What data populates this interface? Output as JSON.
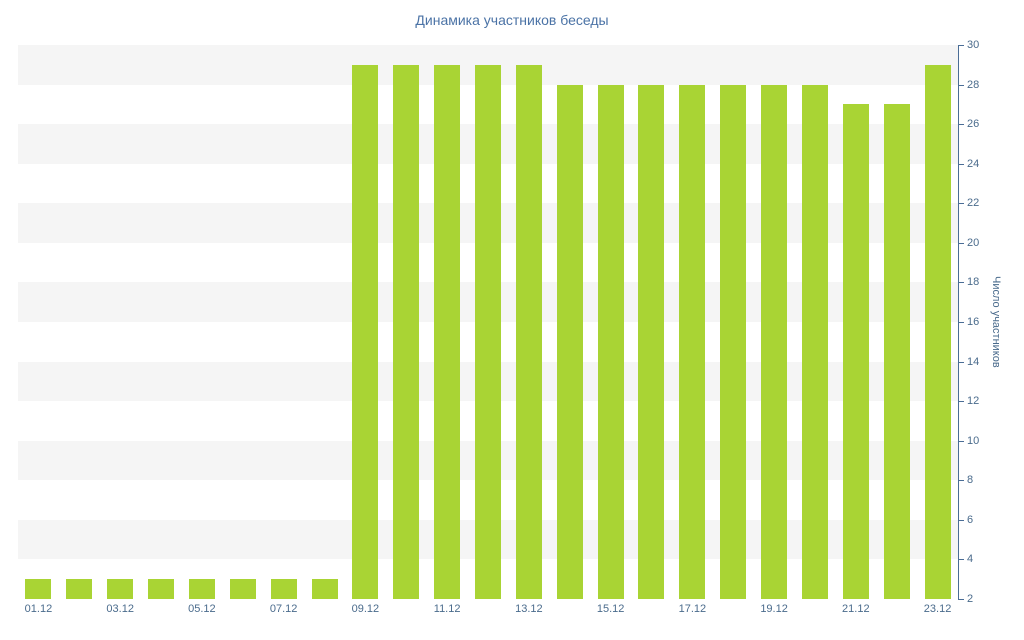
{
  "chart_data": {
    "type": "bar",
    "title": "Динамика участников беседы",
    "ylabel": "Число участников",
    "xlabel": "",
    "categories": [
      "01.12",
      "02.12",
      "03.12",
      "04.12",
      "05.12",
      "06.12",
      "07.12",
      "08.12",
      "09.12",
      "10.12",
      "11.12",
      "12.12",
      "13.12",
      "14.12",
      "15.12",
      "16.12",
      "17.12",
      "18.12",
      "19.12",
      "20.12",
      "21.12",
      "22.12",
      "23.12"
    ],
    "values": [
      3,
      3,
      3,
      3,
      3,
      3,
      3,
      3,
      29,
      29,
      29,
      29,
      29,
      28,
      28,
      28,
      28,
      28,
      28,
      28,
      27,
      27,
      29
    ],
    "ylim": [
      2,
      30
    ],
    "yticks": [
      2,
      4,
      6,
      8,
      10,
      12,
      14,
      16,
      18,
      20,
      22,
      24,
      26,
      28,
      30
    ],
    "x_tick_labels": [
      "01.12",
      "03.12",
      "05.12",
      "07.12",
      "09.12",
      "11.12",
      "13.12",
      "15.12",
      "17.12",
      "19.12",
      "21.12",
      "23.12"
    ],
    "x_label_interval": 2,
    "legend_position": "none",
    "grid": "horizontal-bands",
    "colors": {
      "bar": "#a9d434",
      "band": "#f5f5f5",
      "axis": "#4a6d96",
      "tick_label": "#4a6b8c",
      "title": "#4b73a6"
    }
  }
}
